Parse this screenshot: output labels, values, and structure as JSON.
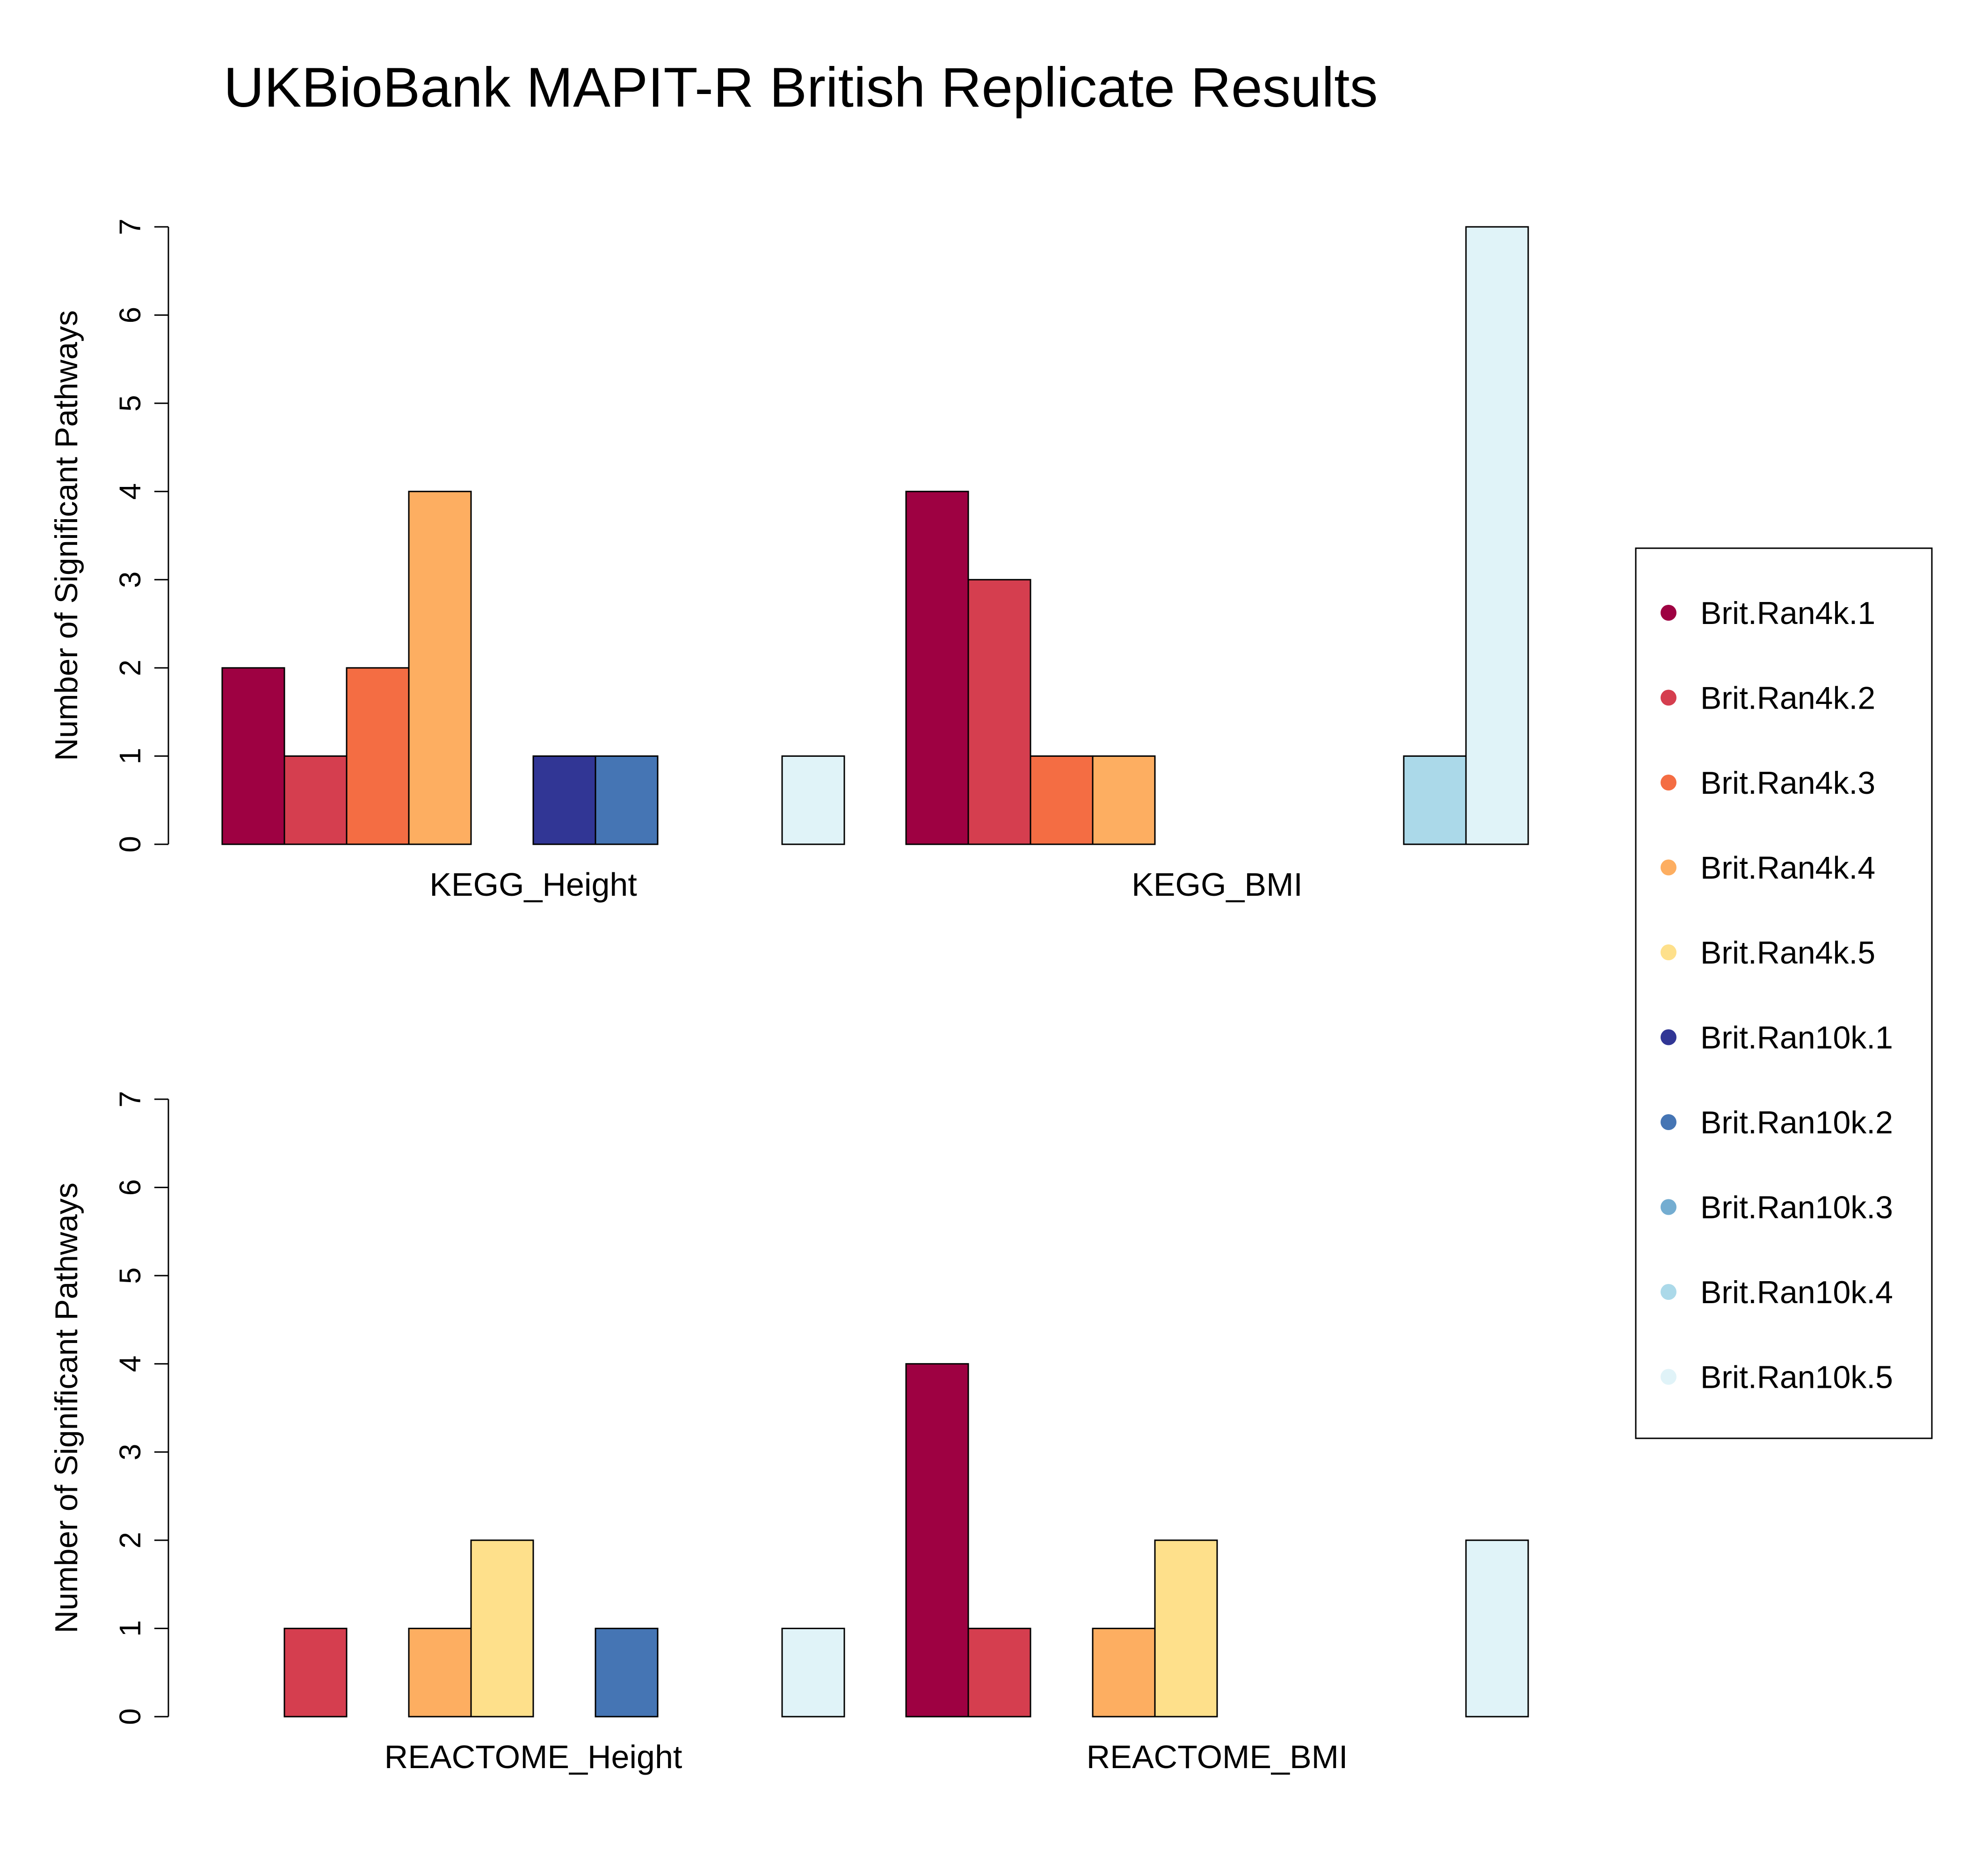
{
  "chart_data": {
    "type": "bar",
    "title": "UKBioBank MAPIT-R British Replicate Results",
    "ylabel": "Number of Significant Pathways",
    "ylim": [
      0,
      7
    ],
    "yticks": [
      0,
      1,
      2,
      3,
      4,
      5,
      6,
      7
    ],
    "legend_position": "right",
    "series": [
      {
        "name": "Brit.Ran4k.1",
        "color": "#9e0142"
      },
      {
        "name": "Brit.Ran4k.2",
        "color": "#d53e4f"
      },
      {
        "name": "Brit.Ran4k.3",
        "color": "#f46d43"
      },
      {
        "name": "Brit.Ran4k.4",
        "color": "#fdae61"
      },
      {
        "name": "Brit.Ran4k.5",
        "color": "#fee08b"
      },
      {
        "name": "Brit.Ran10k.1",
        "color": "#313695"
      },
      {
        "name": "Brit.Ran10k.2",
        "color": "#4575b4"
      },
      {
        "name": "Brit.Ran10k.3",
        "color": "#74add1"
      },
      {
        "name": "Brit.Ran10k.4",
        "color": "#abd9e9"
      },
      {
        "name": "Brit.Ran10k.5",
        "color": "#e0f3f8"
      }
    ],
    "panels": [
      {
        "groups": [
          {
            "category": "KEGG_Height",
            "values": [
              2,
              1,
              2,
              4,
              0,
              1,
              1,
              0,
              0,
              1
            ]
          },
          {
            "category": "KEGG_BMI",
            "values": [
              4,
              3,
              1,
              1,
              0,
              0,
              0,
              0,
              1,
              7
            ]
          }
        ]
      },
      {
        "groups": [
          {
            "category": "REACTOME_Height",
            "values": [
              0,
              1,
              0,
              1,
              2,
              0,
              1,
              0,
              0,
              1
            ]
          },
          {
            "category": "REACTOME_BMI",
            "values": [
              4,
              1,
              0,
              1,
              2,
              0,
              0,
              0,
              0,
              2
            ]
          }
        ]
      }
    ]
  }
}
